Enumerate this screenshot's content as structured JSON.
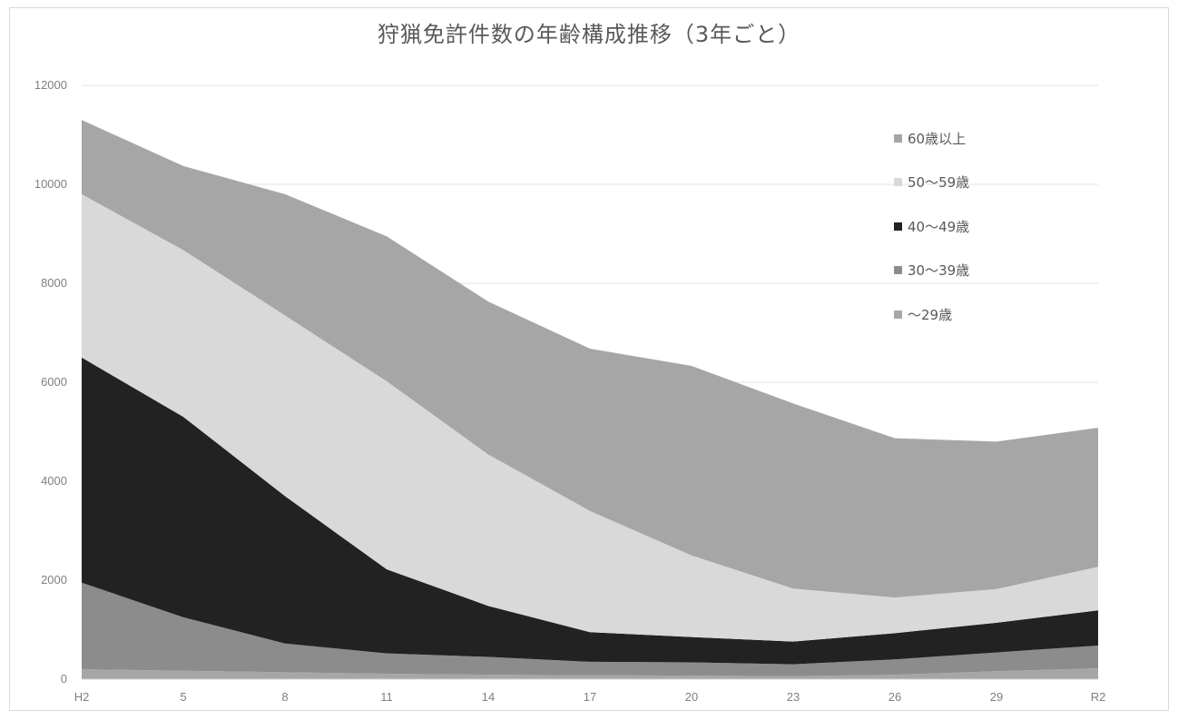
{
  "chart_data": {
    "type": "area",
    "stacked": true,
    "title": "狩猟免許件数の年齢構成推移（3年ごと）",
    "categories": [
      "H2",
      "5",
      "8",
      "11",
      "14",
      "17",
      "20",
      "23",
      "26",
      "29",
      "R2"
    ],
    "ylim": [
      0,
      12000
    ],
    "yticks": [
      0,
      2000,
      4000,
      6000,
      8000,
      10000,
      12000
    ],
    "ytick_labels": [
      "0",
      "2000",
      "4000",
      "6000",
      "8000",
      "10000",
      "12000"
    ],
    "grid": "horizontal",
    "legend_position": "top-right",
    "series": [
      {
        "name": "～29歳",
        "color": "#a6a6a6",
        "values": [
          200,
          170,
          140,
          110,
          90,
          80,
          70,
          60,
          90,
          160,
          220
        ]
      },
      {
        "name": "30～39歳",
        "color": "#8c8c8c",
        "values": [
          1750,
          1080,
          580,
          410,
          360,
          270,
          270,
          240,
          310,
          380,
          460
        ]
      },
      {
        "name": "40～49歳",
        "color": "#222222",
        "values": [
          4550,
          4050,
          2980,
          1700,
          1030,
          600,
          510,
          460,
          530,
          600,
          710
        ]
      },
      {
        "name": "50～59歳",
        "color": "#d9d9d9",
        "values": [
          3300,
          3370,
          3650,
          3800,
          3060,
          2450,
          1650,
          1070,
          720,
          680,
          880
        ]
      },
      {
        "name": "60歳以上",
        "color": "#a6a6a6",
        "values": [
          1500,
          1700,
          2450,
          2930,
          3090,
          3280,
          3830,
          3740,
          3220,
          2980,
          2810
        ]
      }
    ]
  }
}
